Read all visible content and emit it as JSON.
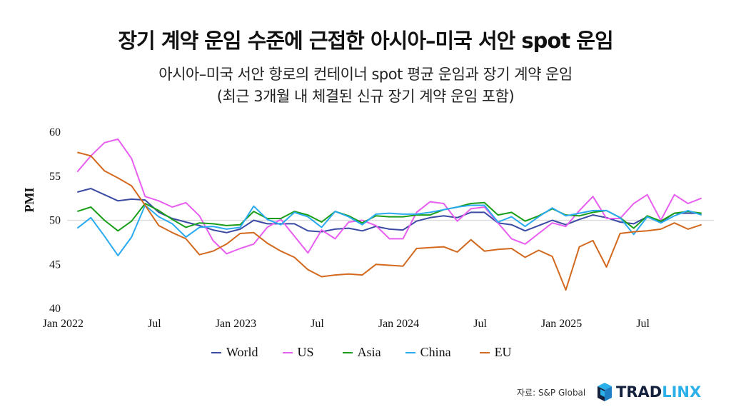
{
  "header": {
    "title": "장기 계약 운임 수준에 근접한 아시아–미국 서안 spot 운임",
    "subtitle_line1": "아시아–미국 서안 항로의 컨테이너 spot 평균 운임과 장기 계약 운임",
    "subtitle_line2": "(최근 3개월 내 체결된 신규 장기 계약 운임 포함)"
  },
  "footer": {
    "source": "자료: S&P Global",
    "logo_part1": "TRAD",
    "logo_part2": "LINX"
  },
  "chart_data": {
    "type": "line",
    "title": "장기 계약 운임 수준에 근접한 아시아–미국 서안 spot 운임",
    "xlabel": "",
    "ylabel": "PMI",
    "ylim": [
      40,
      60
    ],
    "yticks": [
      40,
      45,
      50,
      55,
      60
    ],
    "reference_line": 50,
    "x_start": "Jan 2022",
    "x_end": "Nov 2025",
    "x_count": 47,
    "xticks": [
      {
        "index": 0,
        "label": "Jan 2022"
      },
      {
        "index": 6,
        "label": "Jul"
      },
      {
        "index": 12,
        "label": "Jan 2023"
      },
      {
        "index": 18,
        "label": "Jul"
      },
      {
        "index": 24,
        "label": "Jan 2024"
      },
      {
        "index": 30,
        "label": "Jul"
      },
      {
        "index": 36,
        "label": "Jan 2025"
      },
      {
        "index": 42,
        "label": "Jul"
      }
    ],
    "legend_position": "bottom",
    "grid": false,
    "series": [
      {
        "name": "World",
        "color": "#3b4ba3",
        "values": [
          53.2,
          53.6,
          52.9,
          52.2,
          52.4,
          52.3,
          50.9,
          50.2,
          49.8,
          49.4,
          48.9,
          48.6,
          49.0,
          50.0,
          49.6,
          49.6,
          49.6,
          48.8,
          48.7,
          49.0,
          49.1,
          48.8,
          49.3,
          49.0,
          48.9,
          49.9,
          50.3,
          50.5,
          50.3,
          50.9,
          50.9,
          49.7,
          49.5,
          48.8,
          49.4,
          50.0,
          49.5,
          50.1,
          50.6,
          50.3,
          49.8,
          49.6,
          50.4,
          49.8,
          50.8,
          50.8,
          50.8
        ]
      },
      {
        "name": "US",
        "color": "#e85ef0",
        "values": [
          55.5,
          57.3,
          58.8,
          59.2,
          57.0,
          52.7,
          52.2,
          51.5,
          52.0,
          50.5,
          47.7,
          46.2,
          46.8,
          47.3,
          49.2,
          50.1,
          48.2,
          46.3,
          48.9,
          47.9,
          49.8,
          50.0,
          49.4,
          47.9,
          47.9,
          50.9,
          52.1,
          51.9,
          49.9,
          51.3,
          51.5,
          49.7,
          47.9,
          47.3,
          48.5,
          49.7,
          49.3,
          51.1,
          52.7,
          50.2,
          50.2,
          51.9,
          52.9,
          50.0,
          52.9,
          51.9,
          52.5
        ]
      },
      {
        "name": "Asia",
        "color": "#1a9e1a",
        "values": [
          51.0,
          51.5,
          50.0,
          48.8,
          49.9,
          51.9,
          51.1,
          50.1,
          49.2,
          49.7,
          49.6,
          49.4,
          49.5,
          51.0,
          50.2,
          50.2,
          51.0,
          50.6,
          49.8,
          51.0,
          50.5,
          49.7,
          50.5,
          50.4,
          50.4,
          50.6,
          50.6,
          51.2,
          51.5,
          51.9,
          52.0,
          50.6,
          50.9,
          49.9,
          50.5,
          51.3,
          50.6,
          50.5,
          50.9,
          51.1,
          50.3,
          49.1,
          50.5,
          49.9,
          50.8,
          51.0,
          50.8
        ]
      },
      {
        "name": "China",
        "color": "#2aaaf0",
        "values": [
          49.1,
          50.3,
          48.2,
          46.0,
          48.1,
          51.7,
          50.4,
          49.6,
          48.1,
          49.2,
          49.3,
          49.0,
          49.2,
          51.6,
          50.1,
          49.5,
          50.9,
          50.4,
          49.2,
          51.0,
          50.4,
          49.5,
          50.7,
          50.8,
          50.7,
          50.7,
          50.9,
          51.2,
          51.5,
          51.7,
          51.7,
          49.8,
          50.4,
          49.3,
          50.4,
          51.4,
          50.5,
          50.8,
          51.1,
          51.1,
          50.3,
          48.4,
          50.4,
          49.7,
          50.5,
          51.1,
          50.6
        ]
      },
      {
        "name": "EU",
        "color": "#d2691e",
        "values": [
          57.7,
          57.3,
          55.6,
          54.8,
          53.9,
          51.7,
          49.4,
          48.6,
          47.9,
          46.1,
          46.5,
          47.3,
          48.5,
          48.6,
          47.4,
          46.5,
          45.8,
          44.4,
          43.6,
          43.8,
          43.9,
          43.8,
          45.0,
          44.9,
          44.8,
          46.8,
          46.9,
          47.0,
          46.4,
          47.8,
          46.5,
          46.7,
          46.8,
          45.8,
          46.6,
          45.9,
          42.1,
          47.0,
          47.7,
          44.7,
          48.5,
          48.7,
          48.8,
          49.0,
          49.7,
          49.0,
          49.5
        ]
      }
    ]
  }
}
